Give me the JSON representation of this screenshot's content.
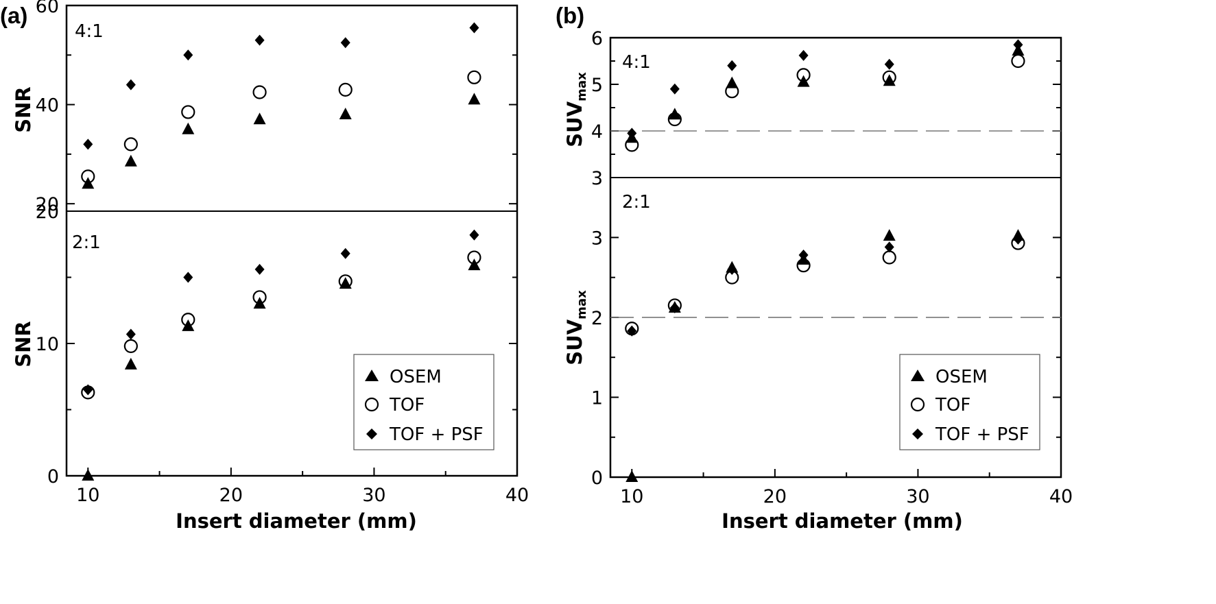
{
  "chart_data": [
    {
      "panel_label": "(a)",
      "type": "scatter",
      "xlabel": "Insert diameter (mm)",
      "xlim": [
        8.5,
        40
      ],
      "xticks": [
        "10",
        "20",
        "30",
        "40"
      ],
      "legend": {
        "placement": "bottom-right",
        "entries": [
          "OSEM",
          "TOF",
          "TOF + PSF"
        ]
      },
      "x": [
        10,
        13,
        17,
        22,
        28,
        37
      ],
      "subplots": [
        {
          "ratio_label": "4:1",
          "ylabel": "SNR",
          "ylim": [
            18.5,
            60
          ],
          "yticks": [
            "20",
            "40",
            "60"
          ],
          "series": [
            {
              "name": "OSEM",
              "marker": "triangle",
              "values": [
                24,
                28.5,
                35,
                37,
                38,
                41
              ]
            },
            {
              "name": "TOF",
              "marker": "circle",
              "values": [
                25.5,
                32,
                38.5,
                42.5,
                43,
                45.5
              ]
            },
            {
              "name": "TOF + PSF",
              "marker": "diamond",
              "values": [
                32,
                44,
                50,
                53,
                52.5,
                55.5
              ]
            }
          ]
        },
        {
          "ratio_label": "2:1",
          "ylabel": "SNR",
          "ylim": [
            0,
            20
          ],
          "yticks": [
            "0",
            "10",
            "20"
          ],
          "series": [
            {
              "name": "OSEM",
              "marker": "triangle",
              "values": [
                0,
                8.4,
                11.3,
                13,
                14.5,
                15.9
              ]
            },
            {
              "name": "TOF",
              "marker": "circle",
              "values": [
                6.3,
                9.8,
                11.8,
                13.5,
                14.7,
                16.5
              ]
            },
            {
              "name": "TOF + PSF",
              "marker": "diamond",
              "values": [
                6.5,
                10.7,
                15,
                15.6,
                16.8,
                18.2
              ]
            }
          ]
        }
      ]
    },
    {
      "panel_label": "(b)",
      "type": "scatter",
      "xlabel": "Insert diameter (mm)",
      "xlim": [
        8.5,
        40
      ],
      "xticks": [
        "10",
        "20",
        "30",
        "40"
      ],
      "legend": {
        "placement": "bottom-right",
        "entries": [
          "OSEM",
          "TOF",
          "TOF + PSF"
        ]
      },
      "x": [
        10,
        13,
        17,
        22,
        28,
        37
      ],
      "subplots": [
        {
          "ratio_label": "4:1",
          "ylabel": "SUVmax",
          "ylabel_main": "SUV",
          "ylabel_sub": "max",
          "ylim": [
            3,
            6
          ],
          "yticks": [
            "3",
            "4",
            "5",
            "6"
          ],
          "reference_line": 4,
          "series": [
            {
              "name": "OSEM",
              "marker": "triangle",
              "values": [
                3.85,
                4.35,
                5.02,
                5.05,
                5.07,
                5.72
              ]
            },
            {
              "name": "TOF",
              "marker": "circle",
              "values": [
                3.7,
                4.25,
                4.85,
                5.2,
                5.15,
                5.5
              ]
            },
            {
              "name": "TOF + PSF",
              "marker": "diamond",
              "values": [
                3.95,
                4.9,
                5.4,
                5.62,
                5.43,
                5.85
              ]
            }
          ]
        },
        {
          "ratio_label": "2:1",
          "ylabel": "SUVmax",
          "ylabel_main": "SUV",
          "ylabel_sub": "max",
          "ylim": [
            0,
            3.75
          ],
          "yticks": [
            "0",
            "1",
            "2",
            "3"
          ],
          "reference_line": 2,
          "series": [
            {
              "name": "OSEM",
              "marker": "triangle",
              "values": [
                0,
                2.12,
                2.62,
                2.72,
                3.02,
                3.02
              ]
            },
            {
              "name": "TOF",
              "marker": "circle",
              "values": [
                1.86,
                2.15,
                2.5,
                2.65,
                2.75,
                2.93
              ]
            },
            {
              "name": "TOF + PSF",
              "marker": "diamond",
              "values": [
                1.83,
                2.12,
                2.6,
                2.78,
                2.88,
                2.98
              ]
            }
          ]
        }
      ]
    }
  ]
}
